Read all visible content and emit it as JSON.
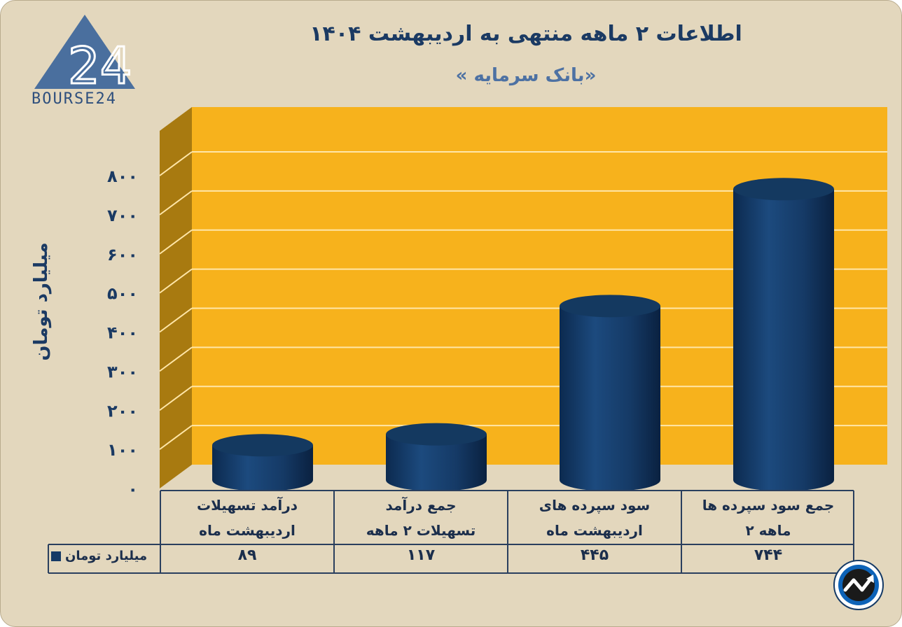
{
  "logo": {
    "text": "BOURSE24",
    "mark": "24"
  },
  "chart_data": {
    "type": "bar",
    "title": "اطلاعات ۲ ماهه منتهی به اردیبهشت ۱۴۰۴",
    "subtitle": "« بانک سرمایه»",
    "ylabel": "میلیارد تومان",
    "ylim": [
      0,
      800
    ],
    "yticks": [
      "۰",
      "۱۰۰",
      "۲۰۰",
      "۳۰۰",
      "۴۰۰",
      "۵۰۰",
      "۶۰۰",
      "۷۰۰",
      "۸۰۰"
    ],
    "grid": true,
    "legend_placement": "bottom-left",
    "categories": [
      {
        "line1": "درآمد تسهیلات",
        "line2": "اردیبهشت ماه"
      },
      {
        "line1": "جمع درآمد",
        "line2": "تسهیلات ۲ ماهه"
      },
      {
        "line1": "سود سپرده های",
        "line2": "اردیبهشت ماه"
      },
      {
        "line1": "جمع سود سپرده ها",
        "line2": "۲ ماهه"
      }
    ],
    "series": [
      {
        "name": "میلیارد تومان",
        "values": [
          89,
          117,
          445,
          744
        ],
        "labels": [
          "۸۹",
          "۱۱۷",
          "۴۴۵",
          "۷۴۴"
        ]
      }
    ],
    "colors": {
      "bar": "#153a66",
      "background": "#f7b21c",
      "wall": "#a87a10",
      "grid": "#ffe6a8"
    }
  },
  "icons": {
    "brand": "trend-arrow-icon"
  }
}
